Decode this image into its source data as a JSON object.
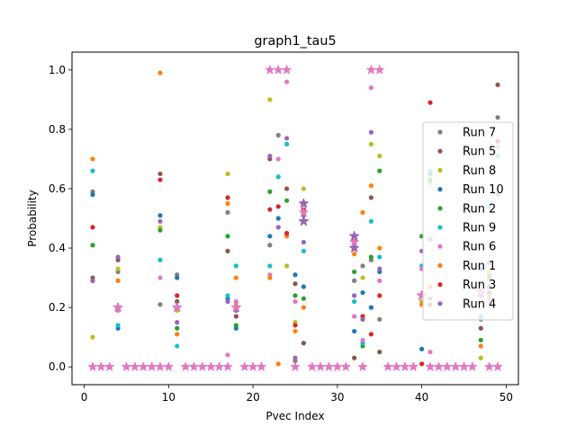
{
  "chart_data": {
    "type": "scatter",
    "title": "graph1_tau5",
    "xlabel": "Pvec Index",
    "ylabel": "Probability",
    "xlim": [
      -1.45,
      51.45
    ],
    "ylim": [
      -0.06,
      1.06
    ],
    "xticks": [
      0,
      10,
      20,
      30,
      40,
      50
    ],
    "yticks": [
      0.0,
      0.2,
      0.4,
      0.6,
      0.8,
      1.0
    ],
    "xtick_labels": [
      "0",
      "10",
      "20",
      "30",
      "40",
      "50"
    ],
    "ytick_labels": [
      "0.0",
      "0.2",
      "0.4",
      "0.6",
      "0.8",
      "1.0"
    ],
    "grid": false,
    "legend_position": "center-right",
    "series": [
      {
        "name": "Run 7",
        "color": "#7f7f7f",
        "x": [
          1,
          4,
          9,
          11,
          17,
          18,
          22,
          23,
          25,
          26,
          32,
          33,
          34,
          35,
          40,
          41,
          47,
          48,
          49
        ],
        "y": [
          0.59,
          0.32,
          0.21,
          0.31,
          0.52,
          0.2,
          0.41,
          0.78,
          0.02,
          0.51,
          0.29,
          0.34,
          0.36,
          0.16,
          0.22,
          0.23,
          0.16,
          0.31,
          0.84
        ]
      },
      {
        "name": "Run 5",
        "color": "#8c564b",
        "x": [
          1,
          4,
          9,
          11,
          17,
          18,
          22,
          24,
          25,
          26,
          32,
          33,
          34,
          35,
          40,
          41,
          47,
          48,
          49
        ],
        "y": [
          0.3,
          0.36,
          0.65,
          0.22,
          0.39,
          0.17,
          0.7,
          0.6,
          0.28,
          0.08,
          0.03,
          0.16,
          0.57,
          0.05,
          0.24,
          0.21,
          0.13,
          0.27,
          0.95
        ]
      },
      {
        "name": "Run 8",
        "color": "#bcbd22",
        "x": [
          1,
          4,
          9,
          11,
          17,
          18,
          22,
          24,
          25,
          26,
          32,
          33,
          34,
          35,
          40,
          41,
          47,
          48
        ],
        "y": [
          0.1,
          0.33,
          0.47,
          0.19,
          0.65,
          0.21,
          0.9,
          0.34,
          0.15,
          0.6,
          0.4,
          0.3,
          0.75,
          0.71,
          0.22,
          0.62,
          0.03,
          0.32
        ]
      },
      {
        "name": "Run 10",
        "color": "#1f77b4",
        "x": [
          1,
          4,
          9,
          11,
          17,
          18,
          22,
          23,
          25,
          26,
          32,
          33,
          34,
          35,
          40,
          41,
          47,
          48
        ],
        "y": [
          0.58,
          0.13,
          0.51,
          0.3,
          0.23,
          0.13,
          0.44,
          0.5,
          0.31,
          0.27,
          0.12,
          0.25,
          0.2,
          0.32,
          0.06,
          0.65,
          0.33,
          0.25
        ]
      },
      {
        "name": "Run 2",
        "color": "#2ca02c",
        "x": [
          1,
          4,
          9,
          11,
          17,
          18,
          22,
          24,
          25,
          26,
          32,
          33,
          34,
          35,
          40,
          41,
          47,
          48
        ],
        "y": [
          0.41,
          0.2,
          0.46,
          0.13,
          0.44,
          0.14,
          0.59,
          0.56,
          0.24,
          0.23,
          0.32,
          0.07,
          0.37,
          0.66,
          0.44,
          0.63,
          0.09,
          0.3
        ]
      },
      {
        "name": "Run 9",
        "color": "#17becf",
        "x": [
          1,
          4,
          9,
          11,
          17,
          18,
          22,
          23,
          24,
          26,
          32,
          33,
          34,
          35,
          40,
          41,
          47,
          48,
          49
        ],
        "y": [
          0.66,
          0.14,
          0.36,
          0.07,
          0.24,
          0.34,
          0.34,
          0.64,
          0.75,
          0.39,
          0.22,
          0.08,
          0.49,
          0.37,
          0.34,
          0.66,
          0.17,
          0.54,
          0.71
        ]
      },
      {
        "name": "Run 6",
        "color": "#e377c2",
        "x": [
          1,
          4,
          9,
          11,
          17,
          18,
          22,
          23,
          24,
          25,
          26,
          32,
          33,
          34,
          35,
          40,
          41,
          47,
          48,
          49
        ],
        "y": [
          0.29,
          0.19,
          0.3,
          0.2,
          0.04,
          0.22,
          0.31,
          0.7,
          0.96,
          0.22,
          0.52,
          0.17,
          0.09,
          0.94,
          0.29,
          0.33,
          0.05,
          0.28,
          0.23,
          0.74
        ]
      },
      {
        "name": "Run 1",
        "color": "#ff7f0e",
        "x": [
          1,
          4,
          9,
          11,
          17,
          18,
          22,
          23,
          24,
          25,
          26,
          32,
          33,
          34,
          35,
          40,
          41,
          47,
          48
        ],
        "y": [
          0.7,
          0.29,
          0.99,
          0.11,
          0.55,
          0.3,
          0.3,
          0.01,
          0.44,
          0.12,
          0.2,
          0.38,
          0.52,
          0.61,
          0.4,
          0.21,
          0.27,
          0.07,
          0.24
        ]
      },
      {
        "name": "Run 3",
        "color": "#d62728",
        "x": [
          1,
          4,
          9,
          11,
          17,
          18,
          22,
          23,
          24,
          25,
          26,
          32,
          33,
          34,
          35,
          40,
          41,
          47,
          48,
          49
        ],
        "y": [
          0.47,
          0.2,
          0.63,
          0.24,
          0.57,
          0.19,
          0.53,
          0.54,
          0.45,
          0.14,
          0.53,
          0.43,
          0.17,
          0.11,
          0.24,
          0.01,
          0.89,
          0.24,
          0.35,
          0.76
        ]
      },
      {
        "name": "Run 4",
        "color": "#9467bd",
        "x": [
          1,
          4,
          9,
          11,
          17,
          18,
          22,
          23,
          24,
          25,
          26,
          32,
          33,
          34,
          35,
          40,
          41,
          47,
          48,
          49
        ],
        "y": [
          0.29,
          0.37,
          0.49,
          0.15,
          0.22,
          0.19,
          0.71,
          0.47,
          0.77,
          0.03,
          0.42,
          0.24,
          0.16,
          0.79,
          0.33,
          0.39,
          0.43,
          0.24,
          0.35,
          0.58
        ]
      }
    ],
    "star_markers": {
      "x": [
        1,
        2,
        3,
        4,
        5,
        6,
        7,
        8,
        9,
        10,
        11,
        12,
        13,
        14,
        15,
        16,
        17,
        18,
        19,
        20,
        21,
        22,
        23,
        24,
        25,
        26,
        27,
        28,
        29,
        30,
        31,
        32,
        33,
        34,
        35,
        36,
        37,
        38,
        39,
        40,
        41,
        42,
        43,
        44,
        45,
        46,
        47,
        48,
        49
      ],
      "y": [
        0,
        0,
        0,
        0.2,
        0,
        0,
        0,
        0,
        0,
        0,
        0.2,
        0,
        0,
        0,
        0,
        0,
        0,
        0.2,
        0,
        0,
        0,
        1.0,
        1.0,
        1.0,
        0,
        0.52,
        0,
        0,
        0,
        0,
        0,
        0.42,
        0,
        1.0,
        1.0,
        0,
        0,
        0,
        0,
        0.24,
        0,
        0,
        0,
        0,
        0,
        0,
        0.25,
        0,
        0
      ],
      "highlight_points": [
        {
          "x": 4,
          "y": 0.2
        },
        {
          "x": 11,
          "y": 0.2
        },
        {
          "x": 18,
          "y": 0.2
        },
        {
          "x": 26,
          "y": 0.55
        },
        {
          "x": 26,
          "y": 0.49
        },
        {
          "x": 32,
          "y": 0.44
        },
        {
          "x": 32,
          "y": 0.4
        },
        {
          "x": 40,
          "y": 0.24
        },
        {
          "x": 47,
          "y": 0.25
        }
      ],
      "colors": [
        "#7f7f7f",
        "#8c564b",
        "#bcbd22",
        "#1f77b4",
        "#2ca02c",
        "#17becf",
        "#e377c2",
        "#ff7f0e",
        "#d62728",
        "#9467bd"
      ],
      "top_color": "#e377c2"
    }
  }
}
